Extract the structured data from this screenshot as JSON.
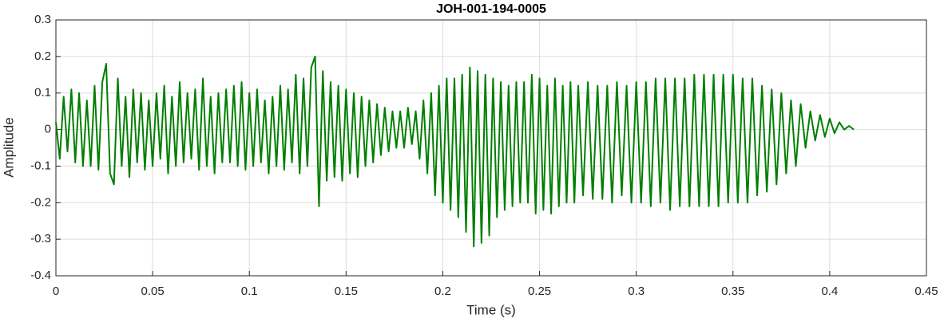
{
  "chart_data": {
    "type": "line",
    "title": "JOH-001-194-0005",
    "x_label": "Time (s)",
    "y_label": "Amplitude",
    "xlim": [
      0,
      0.45
    ],
    "xticks": [
      0,
      0.05,
      0.1,
      0.15,
      0.2,
      0.25,
      0.3,
      0.35,
      0.4,
      0.45
    ],
    "ylim": [
      -0.4,
      0.3
    ],
    "yticks": [
      -0.4,
      -0.3,
      -0.2,
      -0.1,
      0,
      0.1,
      0.2,
      0.3
    ],
    "grid": true,
    "series": [
      {
        "color": "#007f00",
        "x": [
          0,
          0.002,
          0.004,
          0.006,
          0.008,
          0.01,
          0.012,
          0.014,
          0.016,
          0.018,
          0.02,
          0.022,
          0.024,
          0.026,
          0.028,
          0.03,
          0.032,
          0.034,
          0.036,
          0.038,
          0.04,
          0.042,
          0.044,
          0.046,
          0.048,
          0.05,
          0.052,
          0.054,
          0.056,
          0.058,
          0.06,
          0.062,
          0.064,
          0.066,
          0.068,
          0.07,
          0.072,
          0.074,
          0.076,
          0.078,
          0.08,
          0.082,
          0.084,
          0.086,
          0.088,
          0.09,
          0.092,
          0.094,
          0.096,
          0.098,
          0.1,
          0.102,
          0.104,
          0.106,
          0.108,
          0.11,
          0.112,
          0.114,
          0.116,
          0.118,
          0.12,
          0.122,
          0.124,
          0.126,
          0.128,
          0.13,
          0.132,
          0.134,
          0.136,
          0.138,
          0.14,
          0.142,
          0.144,
          0.146,
          0.148,
          0.15,
          0.152,
          0.154,
          0.156,
          0.158,
          0.16,
          0.162,
          0.164,
          0.166,
          0.168,
          0.17,
          0.172,
          0.174,
          0.176,
          0.178,
          0.18,
          0.182,
          0.184,
          0.186,
          0.188,
          0.19,
          0.192,
          0.194,
          0.196,
          0.198,
          0.2,
          0.202,
          0.204,
          0.206,
          0.208,
          0.21,
          0.212,
          0.214,
          0.216,
          0.218,
          0.22,
          0.222,
          0.224,
          0.226,
          0.228,
          0.23,
          0.232,
          0.234,
          0.236,
          0.238,
          0.24,
          0.242,
          0.244,
          0.246,
          0.248,
          0.25,
          0.252,
          0.254,
          0.256,
          0.258,
          0.26,
          0.262,
          0.264,
          0.266,
          0.268,
          0.27,
          0.2725,
          0.275,
          0.2775,
          0.28,
          0.2825,
          0.285,
          0.2875,
          0.29,
          0.2925,
          0.295,
          0.2975,
          0.3,
          0.3025,
          0.305,
          0.3075,
          0.31,
          0.3125,
          0.315,
          0.3175,
          0.32,
          0.3225,
          0.325,
          0.3275,
          0.33,
          0.3325,
          0.335,
          0.3375,
          0.34,
          0.3425,
          0.345,
          0.3475,
          0.35,
          0.3525,
          0.355,
          0.3575,
          0.36,
          0.3625,
          0.365,
          0.3675,
          0.37,
          0.3725,
          0.375,
          0.3775,
          0.38,
          0.3825,
          0.385,
          0.3875,
          0.39,
          0.3925,
          0.395,
          0.3975,
          0.4,
          0.4025,
          0.405,
          0.4075,
          0.41,
          0.4125
        ],
        "values": [
          0.02,
          -0.08,
          0.09,
          -0.06,
          0.11,
          -0.09,
          0.1,
          -0.1,
          0.08,
          -0.1,
          0.12,
          -0.11,
          0.13,
          0.18,
          -0.12,
          -0.15,
          0.14,
          -0.1,
          0.09,
          -0.13,
          0.11,
          -0.09,
          0.1,
          -0.11,
          0.08,
          -0.1,
          0.1,
          -0.08,
          0.12,
          -0.12,
          0.09,
          -0.1,
          0.13,
          -0.09,
          0.1,
          -0.08,
          0.11,
          -0.11,
          0.14,
          -0.1,
          0.09,
          -0.12,
          0.1,
          -0.09,
          0.11,
          -0.09,
          0.12,
          -0.1,
          0.13,
          -0.11,
          0.1,
          -0.1,
          0.11,
          -0.09,
          0.08,
          -0.12,
          0.09,
          -0.1,
          0.12,
          -0.11,
          0.11,
          -0.09,
          0.15,
          -0.12,
          0.14,
          -0.1,
          0.17,
          0.2,
          -0.21,
          0.16,
          -0.14,
          0.13,
          -0.13,
          0.12,
          -0.14,
          0.11,
          -0.12,
          0.1,
          -0.13,
          0.09,
          -0.1,
          0.08,
          -0.09,
          0.07,
          -0.07,
          0.06,
          -0.06,
          0.05,
          -0.05,
          0.05,
          -0.05,
          0.06,
          -0.04,
          0.05,
          -0.08,
          0.08,
          -0.12,
          0.1,
          -0.18,
          0.12,
          -0.2,
          0.14,
          -0.22,
          0.14,
          -0.24,
          0.15,
          -0.28,
          0.17,
          -0.32,
          0.16,
          -0.31,
          0.15,
          -0.29,
          0.14,
          -0.24,
          0.13,
          -0.22,
          0.12,
          -0.21,
          0.13,
          -0.2,
          0.13,
          -0.2,
          0.15,
          -0.23,
          0.14,
          -0.22,
          0.12,
          -0.23,
          0.14,
          -0.21,
          0.12,
          -0.2,
          0.13,
          -0.2,
          0.12,
          -0.18,
          0.13,
          -0.19,
          0.12,
          -0.19,
          0.12,
          -0.2,
          0.13,
          -0.18,
          0.12,
          -0.2,
          0.13,
          -0.2,
          0.13,
          -0.21,
          0.14,
          -0.2,
          0.14,
          -0.22,
          0.14,
          -0.21,
          0.14,
          -0.21,
          0.15,
          -0.21,
          0.15,
          -0.21,
          0.15,
          -0.21,
          0.15,
          -0.2,
          0.15,
          -0.2,
          0.14,
          -0.2,
          0.14,
          -0.18,
          0.12,
          -0.17,
          0.11,
          -0.15,
          0.1,
          -0.12,
          0.08,
          -0.1,
          0.07,
          -0.05,
          0.05,
          -0.03,
          0.04,
          -0.02,
          0.03,
          -0.01,
          0.02,
          0,
          0.01,
          0
        ]
      }
    ]
  }
}
